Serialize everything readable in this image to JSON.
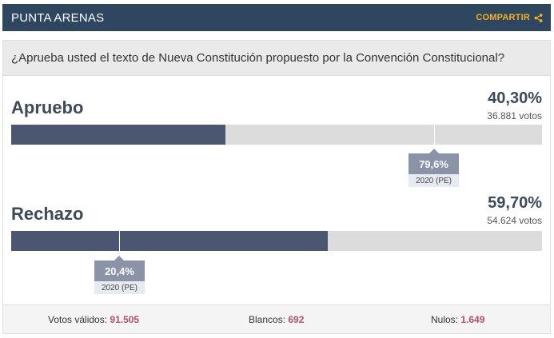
{
  "header": {
    "title": "PUNTA ARENAS",
    "share_label": "COMPARTIR",
    "share_icon": "share-icon",
    "background": "#2e4660",
    "accent": "#f2b21b"
  },
  "question": "¿Aprueba usted el texto de Nueva Constitución propuesto por la Convención Constitucional?",
  "options": [
    {
      "name": "Apruebo",
      "percent_label": "40,30%",
      "votes_label": "36.881 votos",
      "bar_fraction": 0.403,
      "previous": {
        "value_label": "79,6%",
        "caption": "2020 (PE)",
        "fraction": 0.796
      }
    },
    {
      "name": "Rechazo",
      "percent_label": "59,70%",
      "votes_label": "54.624 votos",
      "bar_fraction": 0.597,
      "previous": {
        "value_label": "20,4%",
        "caption": "2020 (PE)",
        "fraction": 0.204
      }
    }
  ],
  "footer": {
    "valid_label": "Votos válidos:",
    "valid_value": "91.505",
    "blank_label": "Blancos:",
    "blank_value": "692",
    "null_label": "Nulos:",
    "null_value": "1.649"
  },
  "colors": {
    "bar_fill": "#4b5670",
    "bar_track": "#dcdcdc",
    "marker": "#8a93a8",
    "footer_value": "#b0506a"
  }
}
